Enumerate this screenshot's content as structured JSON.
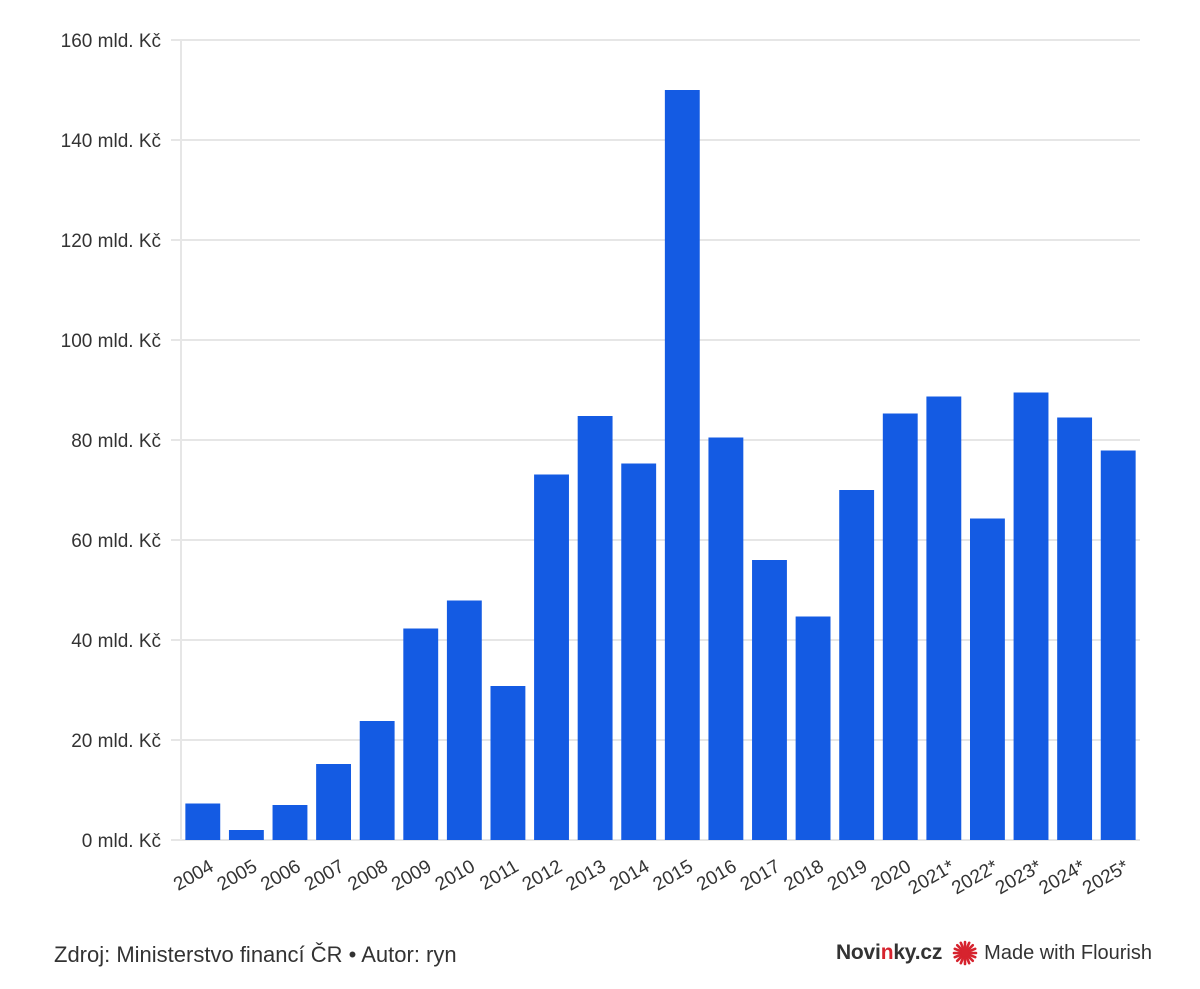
{
  "chart_data": {
    "type": "bar",
    "categories": [
      "2004",
      "2005",
      "2006",
      "2007",
      "2008",
      "2009",
      "2010",
      "2011",
      "2012",
      "2013",
      "2014",
      "2015",
      "2016",
      "2017",
      "2018",
      "2019",
      "2020",
      "2021*",
      "2022*",
      "2023*",
      "2024*",
      "2025*"
    ],
    "values": [
      7.3,
      2.0,
      7.0,
      15.2,
      23.8,
      42.3,
      47.9,
      30.8,
      73.1,
      84.8,
      75.3,
      150.0,
      80.5,
      56.0,
      44.7,
      70.0,
      85.3,
      88.7,
      64.3,
      89.5,
      84.5,
      77.9
    ],
    "ylim": [
      0,
      160
    ],
    "yticks": [
      0,
      20,
      40,
      60,
      80,
      100,
      120,
      140,
      160
    ],
    "ytick_suffix": " mld. Kč",
    "bar_color": "#145be3",
    "grid": true
  },
  "footer": {
    "source": "Zdroj: Ministerstvo financí ČR • Autor: ryn",
    "brand_left": "Novi",
    "brand_accent": "n",
    "brand_right": "ky.cz",
    "flourish_label": "Made with Flourish"
  },
  "colors": {
    "bar": "#145be3",
    "grid": "#e6e6e6",
    "brand_accent": "#d6232e"
  }
}
